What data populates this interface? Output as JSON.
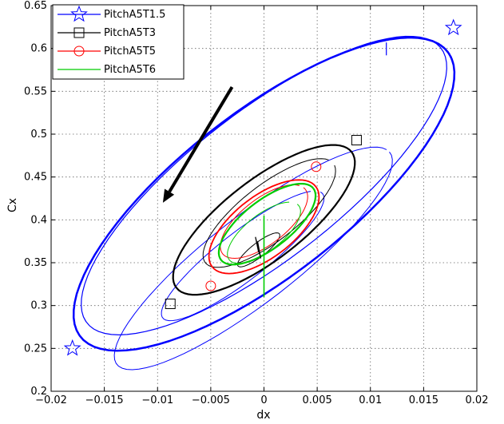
{
  "chart_data": {
    "type": "line",
    "xlabel": "dx",
    "ylabel": "Cx",
    "xlim": [
      -0.02,
      0.02
    ],
    "ylim": [
      0.2,
      0.65
    ],
    "xticks": [
      "−0.02",
      "−0.015",
      "−0.01",
      "−0.005",
      "0",
      "0.005",
      "0.01",
      "0.015",
      "0.02"
    ],
    "yticks": [
      "0.2",
      "0.25",
      "0.3",
      "0.35",
      "0.4",
      "0.45",
      "0.5",
      "0.55",
      "0.6",
      "0.65"
    ],
    "xtick_values": [
      -0.02,
      -0.015,
      -0.01,
      -0.005,
      0,
      0.005,
      0.01,
      0.015,
      0.02
    ],
    "ytick_values": [
      0.2,
      0.25,
      0.3,
      0.35,
      0.4,
      0.45,
      0.5,
      0.55,
      0.6,
      0.65
    ],
    "grid": true,
    "legend_position": "top-left",
    "arrow": {
      "from": [
        -0.003,
        0.555
      ],
      "to": [
        -0.0095,
        0.42
      ]
    },
    "series": [
      {
        "name": "PitchA5T1.5",
        "color": "#0000ff",
        "marker": "star",
        "loops": [
          {
            "cx": 0.0,
            "cy": 0.43,
            "a": 0.0195,
            "b": 0.2,
            "start": -0.15,
            "sweep": 6.55,
            "width": 2.5,
            "steps": 90
          },
          {
            "cx": 0.0,
            "cy": 0.44,
            "a": 0.0188,
            "b": 0.18,
            "start": 3.05,
            "sweep": 6.35,
            "width": 1.2,
            "steps": 90
          },
          {
            "cx": -0.001,
            "cy": 0.355,
            "a": 0.0145,
            "b": 0.105,
            "start": 0.1,
            "sweep": 6.2,
            "width": 1.0,
            "steps": 70
          },
          {
            "cx": -0.002,
            "cy": 0.358,
            "a": 0.0085,
            "b": 0.058,
            "start": 0.4,
            "sweep": 6.0,
            "width": 1.0,
            "steps": 60
          }
        ],
        "markers": [
          [
            0.0178,
            0.624
          ],
          [
            -0.018,
            0.25
          ]
        ]
      },
      {
        "name": "PitchA5T3",
        "color": "#000000",
        "marker": "square",
        "loops": [
          {
            "cx": 0.0,
            "cy": 0.4,
            "a": 0.0093,
            "b": 0.097,
            "start": 0,
            "sweep": 6.283,
            "width": 2.2,
            "steps": 80
          },
          {
            "cx": 0.0005,
            "cy": 0.408,
            "a": 0.0068,
            "b": 0.068,
            "start": 0.2,
            "sweep": 6.0,
            "width": 1.0,
            "steps": 60
          },
          {
            "cx": -0.0005,
            "cy": 0.365,
            "a": 0.0022,
            "b": 0.017,
            "start": 0,
            "sweep": 6.283,
            "width": 1.0,
            "steps": 40
          }
        ],
        "markers": [
          [
            0.0087,
            0.493
          ],
          [
            -0.0088,
            0.302
          ]
        ]
      },
      {
        "name": "PitchA5T5",
        "color": "#ff0000",
        "marker": "circle",
        "loops": [
          {
            "cx": 0.0,
            "cy": 0.392,
            "a": 0.0055,
            "b": 0.074,
            "start": 0,
            "sweep": 6.283,
            "width": 1.8,
            "steps": 70
          },
          {
            "cx": 0.0,
            "cy": 0.398,
            "a": 0.0044,
            "b": 0.055,
            "start": 0.3,
            "sweep": 6.1,
            "width": 1.0,
            "steps": 60
          }
        ],
        "markers": [
          [
            0.0049,
            0.462
          ],
          [
            -0.005,
            0.323
          ]
        ]
      },
      {
        "name": "PitchA5T6",
        "color": "#00cc00",
        "marker": "none",
        "loops": [
          {
            "cx": 0.0003,
            "cy": 0.395,
            "a": 0.0049,
            "b": 0.058,
            "start": 0,
            "sweep": 6.283,
            "width": 2.2,
            "steps": 70
          },
          {
            "cx": 0.0,
            "cy": 0.385,
            "a": 0.0037,
            "b": 0.044,
            "start": 0.5,
            "sweep": 5.9,
            "width": 1.0,
            "steps": 60
          }
        ],
        "segments": [
          [
            [
              0.0,
              0.31
            ],
            [
              0.0,
              0.405
            ]
          ]
        ],
        "markers": []
      }
    ],
    "spikes": [
      {
        "color": "#0000ff",
        "points": [
          [
            0.0115,
            0.592
          ],
          [
            0.0115,
            0.607
          ]
        ]
      },
      {
        "color": "#000000",
        "points": [
          [
            -0.0005,
            0.362
          ],
          [
            -0.0008,
            0.38
          ],
          [
            -0.0003,
            0.355
          ],
          [
            -0.0006,
            0.375
          ]
        ]
      }
    ]
  }
}
